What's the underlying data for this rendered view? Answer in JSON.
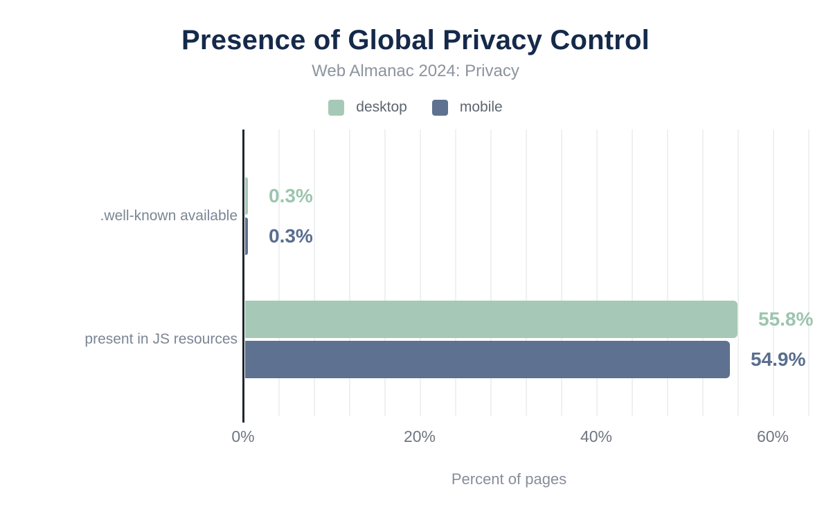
{
  "header": {
    "title": "Presence of Global Privacy Control",
    "subtitle": "Web Almanac 2024: Privacy"
  },
  "legend": {
    "items": [
      {
        "label": "desktop",
        "color": "#a5c9b6"
      },
      {
        "label": "mobile",
        "color": "#5f7190"
      }
    ]
  },
  "chart_data": {
    "type": "bar",
    "orientation": "horizontal",
    "title": "Presence of Global Privacy Control",
    "subtitle": "Web Almanac 2024: Privacy",
    "categories": [
      ".well-known available",
      "present in JS resources"
    ],
    "series": [
      {
        "name": "desktop",
        "color": "#a5c9b6",
        "label_color": "#9cc5ae",
        "values": [
          0.3,
          55.8
        ],
        "value_labels": [
          "0.3%",
          "55.8%"
        ]
      },
      {
        "name": "mobile",
        "color": "#5f7190",
        "label_color": "#596e8e",
        "values": [
          0.3,
          54.9
        ],
        "value_labels": [
          "0.3%",
          "54.9%"
        ]
      }
    ],
    "xlabel": "Percent of pages",
    "x_ticks": [
      {
        "value": 0,
        "label": "0%"
      },
      {
        "value": 20,
        "label": "20%"
      },
      {
        "value": 40,
        "label": "40%"
      },
      {
        "value": 60,
        "label": "60%"
      }
    ],
    "xlim": [
      0,
      64.8
    ],
    "grid": {
      "minor_step_pct": 4,
      "color": "#eef0f2",
      "show": true
    },
    "legend_position": "top",
    "colors": {
      "axis_line": "#1f2730",
      "tick_label": "#6f7681",
      "category_label": "#7b8594",
      "xlabel": "#868e99",
      "title": "#15294b",
      "subtitle": "#8d939d",
      "legend_label": "#5d6570"
    }
  }
}
